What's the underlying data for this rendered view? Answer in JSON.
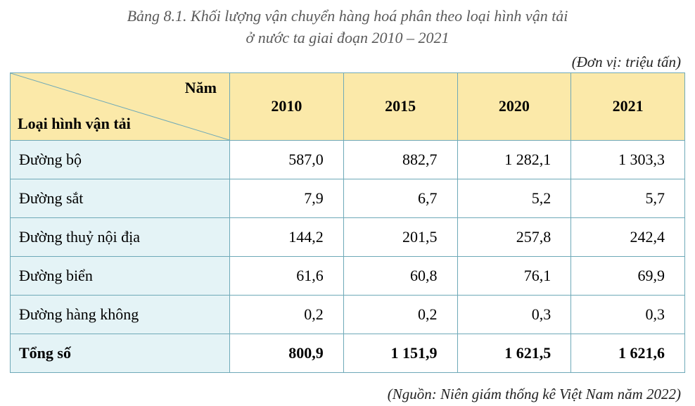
{
  "title_line1": "Bảng 8.1. Khối lượng vận chuyển hàng hoá phân theo loại hình vận tải",
  "title_line2": "ở nước ta giai đoạn 2010 – 2021",
  "unit": "(Đơn vị: triệu tấn)",
  "source": "(Nguồn: Niên giám thống kê Việt Nam năm 2022)",
  "table": {
    "corner_top": "Năm",
    "corner_bottom": "Loại hình vận tải",
    "columns": [
      "2010",
      "2015",
      "2020",
      "2021"
    ],
    "rows": [
      {
        "label": "Đường bộ",
        "values": [
          "587,0",
          "882,7",
          "1 282,1",
          "1 303,3"
        ],
        "bold": false
      },
      {
        "label": "Đường sắt",
        "values": [
          "7,9",
          "6,7",
          "5,2",
          "5,7"
        ],
        "bold": false
      },
      {
        "label": "Đường thuỷ nội địa",
        "values": [
          "144,2",
          "201,5",
          "257,8",
          "242,4"
        ],
        "bold": false
      },
      {
        "label": "Đường biển",
        "values": [
          "61,6",
          "60,8",
          "76,1",
          "69,9"
        ],
        "bold": false
      },
      {
        "label": "Đường hàng không",
        "values": [
          "0,2",
          "0,2",
          "0,3",
          "0,3"
        ],
        "bold": false
      },
      {
        "label": "Tổng số",
        "values": [
          "800,9",
          "1 151,9",
          "1 621,5",
          "1 621,6"
        ],
        "bold": true
      }
    ],
    "colors": {
      "header_bg": "#fbe9a9",
      "label_bg": "#e4f3f6",
      "data_bg": "#ffffff",
      "border": "#6ea9b8",
      "diagonal": "#6ea9b8"
    }
  }
}
